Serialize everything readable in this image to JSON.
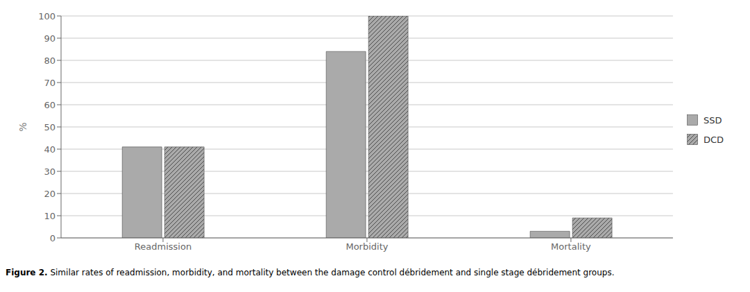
{
  "chart_data": {
    "type": "bar",
    "categories": [
      "Readmission",
      "Morbidity",
      "Mortality"
    ],
    "series": [
      {
        "name": "SSD",
        "color": "#aaaaaa",
        "values": [
          41,
          84,
          3
        ]
      },
      {
        "name": "DCD",
        "color": "#aaaaaa",
        "values": [
          41,
          100,
          9
        ]
      }
    ],
    "y_label": "%",
    "ylim": [
      0,
      100
    ],
    "yticks": [
      0,
      10,
      20,
      30,
      40,
      50,
      60,
      70,
      80,
      90,
      100
    ],
    "grid": true,
    "legend": "right",
    "annotations": [
      "Figure 2.",
      " Similar rates of readmission, morbidity, and mortality between the damage control débridement and single stage débridement groups."
    ]
  }
}
